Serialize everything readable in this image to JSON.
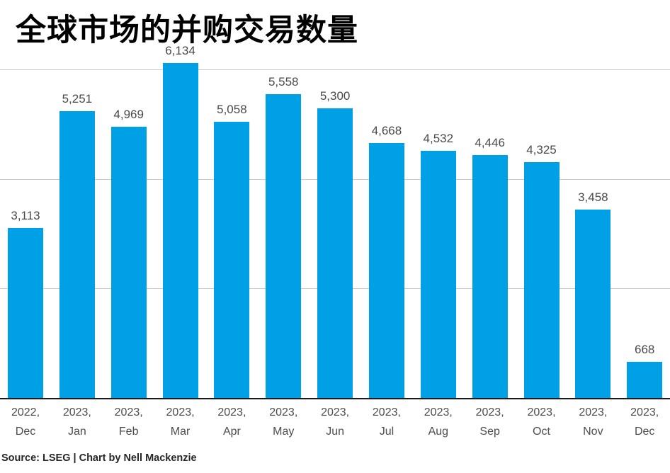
{
  "header": {
    "title": "全球市场的并购交易数量"
  },
  "footer": {
    "source": "Source: LSEG | Chart by Nell Mackenzie"
  },
  "colors": {
    "bar": "#00a0e6",
    "gridline": "#cccccc",
    "axis_line": "#1a1a1a",
    "value_label": "#4a4a4a",
    "axis_label": "#4d4d4d",
    "title": "#000000",
    "source": "#262626",
    "background": "#ffffff"
  },
  "chart_data": {
    "type": "bar",
    "title": "全球市场的并购交易数量",
    "xlabel": "",
    "ylabel": "",
    "categories": [
      "2022, Dec",
      "2023, Jan",
      "2023, Feb",
      "2023, Mar",
      "2023, Apr",
      "2023, May",
      "2023, Jun",
      "2023, Jul",
      "2023, Aug",
      "2023, Sep",
      "2023, Oct",
      "2023, Nov",
      "2023, Dec"
    ],
    "values": [
      3113,
      5251,
      4969,
      6134,
      5058,
      5558,
      5300,
      4668,
      4532,
      4446,
      4325,
      3458,
      668
    ],
    "value_labels": [
      "3,113",
      "5,251",
      "4,969",
      "6,134",
      "5,058",
      "5,558",
      "5,300",
      "4,668",
      "4,532",
      "4,446",
      "4,325",
      "3,458",
      "668"
    ],
    "gridline_values": [
      2000,
      4000,
      6000
    ],
    "ylim": [
      0,
      6340
    ],
    "grid": "horizontal-unlabeled",
    "legend": "none",
    "value_labels_position": "above-bars"
  }
}
